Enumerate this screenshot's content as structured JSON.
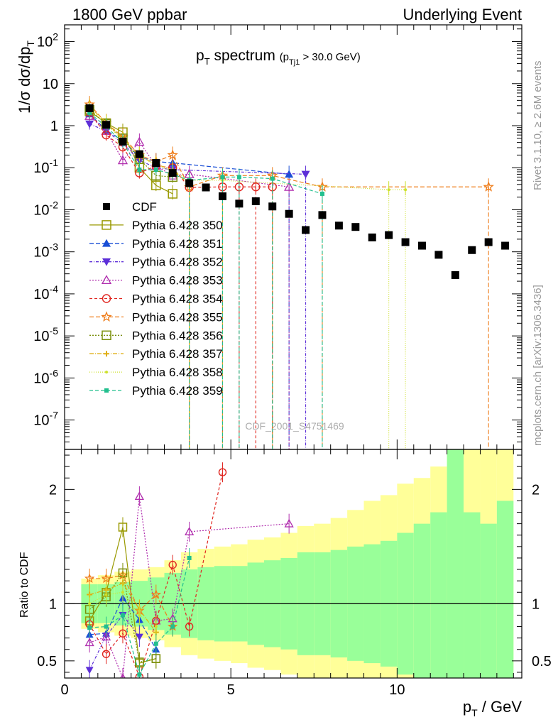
{
  "header": {
    "left": "1800 GeV ppbar",
    "right": "Underlying Event"
  },
  "side": {
    "rivet": "Rivet 3.1.10, ≥ 2.6M events",
    "mcplots": "mcplots.cern.ch [arXiv:1306.3436]"
  },
  "plot": {
    "title_main": "p",
    "title_main_sub": "T",
    "title_word": " spectrum",
    "title_cut": "(p",
    "title_cut_sub": "Tj1",
    "title_cut_rest": " > 30.0 GeV)",
    "ylabel": "1/σ dσ/dp",
    "ylabel_sub": "T",
    "watermark": "CDF_2001_S4751469",
    "ratio_ylabel": "Ratio to CDF",
    "xlabel": "p",
    "xlabel_sub": "T",
    "xlabel_rest": " / GeV"
  },
  "chart_data": {
    "type": "scatter",
    "x_axis": {
      "range": [
        0,
        13.75
      ],
      "ticks": [
        0,
        5,
        10
      ],
      "tick_labels": [
        "0",
        "5",
        "10"
      ]
    },
    "main": {
      "y_scale": "log",
      "y_range": [
        2e-08,
        250
      ],
      "ticks": [
        1e-07,
        1e-06,
        1e-05,
        0.0001,
        0.001,
        0.01,
        0.1,
        1,
        10,
        100
      ],
      "tick_labels": [
        "10^-7",
        "10^-6",
        "10^-5",
        "10^-4",
        "10^-3",
        "10^-2",
        "10^-1",
        "1",
        "10",
        "10^2"
      ]
    },
    "ratio": {
      "y_range": [
        0.35,
        2.35
      ],
      "ticks": [
        0.5,
        1,
        2
      ],
      "tick_labels": [
        "0.5",
        "1",
        "2"
      ]
    },
    "cdf": {
      "name": "CDF",
      "x": [
        0.75,
        1.25,
        1.75,
        2.25,
        2.75,
        3.25,
        3.75,
        4.25,
        4.75,
        5.25,
        5.75,
        6.25,
        6.75,
        7.25,
        7.75,
        8.25,
        8.75,
        9.25,
        9.75,
        10.25,
        10.75,
        11.25,
        11.75,
        12.25,
        12.75,
        13.25
      ],
      "y": [
        2.6,
        1.05,
        0.42,
        0.21,
        0.13,
        0.075,
        0.043,
        0.034,
        0.021,
        0.014,
        0.016,
        0.012,
        0.008,
        0.0033,
        0.0075,
        0.0042,
        0.0039,
        0.0022,
        0.0025,
        0.0017,
        0.0014,
        0.00085,
        0.00028,
        0.0011,
        0.0017,
        0.0014
      ],
      "band_inner": [
        0.17,
        0.17,
        0.19,
        0.2,
        0.23,
        0.27,
        0.3,
        0.32,
        0.33,
        0.33,
        0.36,
        0.38,
        0.4,
        0.45,
        0.45,
        0.47,
        0.5,
        0.52,
        0.55,
        0.62,
        0.7,
        0.8,
        1.4,
        0.8,
        0.7,
        0.9
      ],
      "band_outer": [
        0.22,
        0.25,
        0.28,
        0.3,
        0.32,
        0.38,
        0.45,
        0.48,
        0.5,
        0.52,
        0.56,
        0.58,
        0.62,
        0.68,
        0.7,
        0.75,
        0.82,
        0.9,
        0.95,
        1.05,
        1.1,
        1.2,
        1.3,
        1.5,
        1.5,
        1.6
      ]
    },
    "series": [
      {
        "name": "Pythia 6.428 350",
        "color": "#999900",
        "marker": "square-open",
        "dash": "",
        "x": [
          0.75,
          1.25,
          1.75,
          2.25,
          2.75,
          3.25
        ],
        "y": [
          2.2,
          1.15,
          0.7,
          0.1,
          0.038,
          0.024
        ],
        "ratio": [
          0.85,
          1.1,
          1.67,
          0.48,
          0.52
        ]
      },
      {
        "name": "Pythia 6.428 351",
        "color": "#1a4fd6",
        "marker": "triangle-up",
        "dash": "6,3",
        "x": [
          0.75,
          1.25,
          1.75,
          2.25,
          2.75,
          3.25,
          6.75
        ],
        "y": [
          1.9,
          0.78,
          0.44,
          0.18,
          0.14,
          0.13,
          0.07
        ],
        "ratio": [
          0.73,
          0.74,
          1.05,
          0.86,
          0.6
        ]
      },
      {
        "name": "Pythia 6.428 352",
        "color": "#5d2fd8",
        "marker": "triangle-down",
        "dash": "4,2,1,2",
        "x": [
          0.75,
          1.25,
          1.75,
          2.25,
          2.75,
          3.25,
          7.25
        ],
        "y": [
          1.1,
          0.75,
          0.38,
          0.15,
          0.1,
          0.09,
          0.07
        ],
        "ratio": [
          0.42,
          0.72,
          0.9,
          0.71
        ]
      },
      {
        "name": "Pythia 6.428 353",
        "color": "#b02dae",
        "marker": "triangle-up-open",
        "dash": "2,2",
        "x": [
          0.75,
          1.25,
          1.75,
          2.25,
          2.75,
          3.25,
          3.75,
          6.75
        ],
        "y": [
          1.7,
          0.75,
          0.15,
          0.41,
          0.11,
          0.065,
          0.07,
          0.035
        ],
        "ratio": [
          0.66,
          0.71,
          0.35,
          1.94,
          0.85,
          0.87,
          1.63,
          1.7
        ]
      },
      {
        "name": "Pythia 6.428 354",
        "color": "#e0251f",
        "marker": "circle-open",
        "dash": "4,3",
        "x": [
          0.75,
          1.25,
          1.75,
          2.25,
          2.75,
          3.25,
          3.75,
          4.75,
          5.25,
          5.75,
          6.25
        ],
        "y": [
          2.1,
          0.6,
          0.31,
          0.075,
          0.11,
          0.1,
          0.034,
          0.035,
          0.035,
          0.035,
          0.035
        ],
        "ratio": [
          0.82,
          0.56,
          0.74,
          0.36,
          0.85,
          1.34,
          0.8,
          2.15
        ]
      },
      {
        "name": "Pythia 6.428 355",
        "color": "#ef7d1a",
        "marker": "star",
        "dash": "6,3",
        "x": [
          0.75,
          1.25,
          1.75,
          2.25,
          2.75,
          3.25,
          3.75,
          4.75,
          6.25,
          7.75,
          12.75
        ],
        "y": [
          3.2,
          1.15,
          0.55,
          0.2,
          0.14,
          0.2,
          0.035,
          0.065,
          0.065,
          0.035,
          0.035
        ],
        "ratio": [
          1.22,
          1.22,
          1.25,
          0.94,
          1.08,
          0.8
        ]
      },
      {
        "name": "Pythia 6.428 356",
        "color": "#7a8f0a",
        "marker": "square-open",
        "dash": "2,2",
        "x": [
          0.75,
          1.25,
          1.75,
          2.25,
          2.75,
          3.25
        ],
        "y": [
          2.4,
          1.1,
          0.5,
          0.16,
          0.065,
          0.06
        ],
        "ratio": [
          0.95,
          1.06,
          1.27,
          0.49,
          0.52
        ]
      },
      {
        "name": "Pythia 6.428 357",
        "color": "#dfae11",
        "marker": "cross",
        "dash": "6,2,1,2",
        "x": [
          0.75,
          1.25,
          1.75,
          2.25,
          2.75,
          3.25,
          3.75
        ],
        "y": [
          2.8,
          1.2,
          0.48,
          0.19,
          0.12,
          0.09,
          0.04
        ],
        "ratio": [
          1.08,
          1.12,
          1.18,
          0.95,
          0.75
        ]
      },
      {
        "name": "Pythia 6.428 358",
        "color": "#cde12b",
        "marker": "dot",
        "dash": "1,2",
        "x": [
          0.75,
          1.25,
          1.75,
          2.25,
          2.75,
          3.25,
          3.75,
          4.75,
          9.75,
          10.25
        ],
        "y": [
          2.5,
          1.1,
          0.45,
          0.2,
          0.11,
          0.085,
          0.05,
          0.05,
          0.03,
          0.03
        ],
        "ratio": [
          1.0,
          1.08,
          1.1,
          0.9,
          0.8
        ]
      },
      {
        "name": "Pythia 6.428 359",
        "color": "#22bf8e",
        "marker": "square-small",
        "dash": "5,3",
        "x": [
          0.75,
          1.25,
          1.75,
          2.25,
          2.75,
          3.25,
          3.75,
          4.75,
          5.25,
          6.25,
          7.75
        ],
        "y": [
          2.0,
          0.95,
          0.4,
          0.09,
          0.09,
          0.07,
          0.05,
          0.06,
          0.06,
          0.055,
          0.024
        ],
        "ratio": [
          0.79,
          0.8,
          0.9,
          0.38,
          0.65,
          0.8,
          1.4
        ]
      }
    ]
  }
}
